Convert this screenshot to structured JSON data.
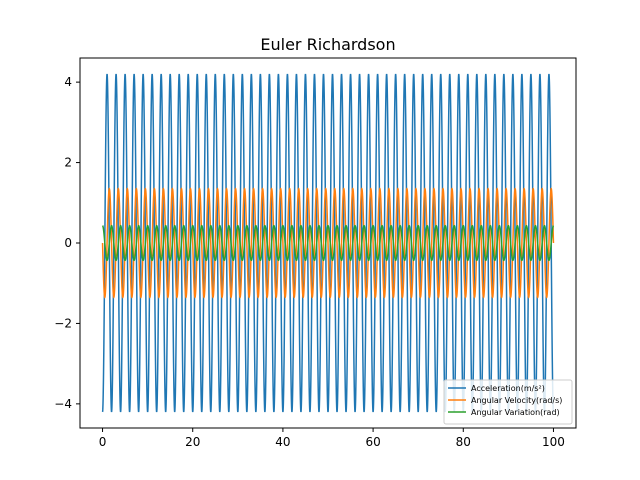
{
  "chart_data": {
    "type": "line",
    "title": "Euler Richardson",
    "xlabel": "",
    "ylabel": "",
    "xlim": [
      -5,
      105
    ],
    "ylim": [
      -4.6,
      4.6
    ],
    "x_ticks": [
      0,
      20,
      40,
      60,
      80,
      100
    ],
    "y_ticks": [
      -4,
      -2,
      0,
      2,
      4
    ],
    "x_tick_labels": [
      "0",
      "20",
      "40",
      "60",
      "80",
      "100"
    ],
    "y_tick_labels": [
      "−4",
      "−2",
      "0",
      "2",
      "4"
    ],
    "grid": false,
    "legend_position": "lower-right",
    "x_range": [
      0,
      100
    ],
    "series": [
      {
        "name": "Acceleration(m/s²)",
        "color": "#1f77b4",
        "amplitude": 4.2,
        "period": 2.0,
        "phase": "cos",
        "sign": -1
      },
      {
        "name": "Angular Velocity(rad/s)",
        "color": "#ff7f0e",
        "amplitude": 1.35,
        "period": 2.0,
        "phase": "sin",
        "sign": -1
      },
      {
        "name": "Angular Variation(rad)",
        "color": "#2ca02c",
        "amplitude": 0.43,
        "period": 2.0,
        "phase": "cos",
        "sign": 1
      }
    ]
  }
}
